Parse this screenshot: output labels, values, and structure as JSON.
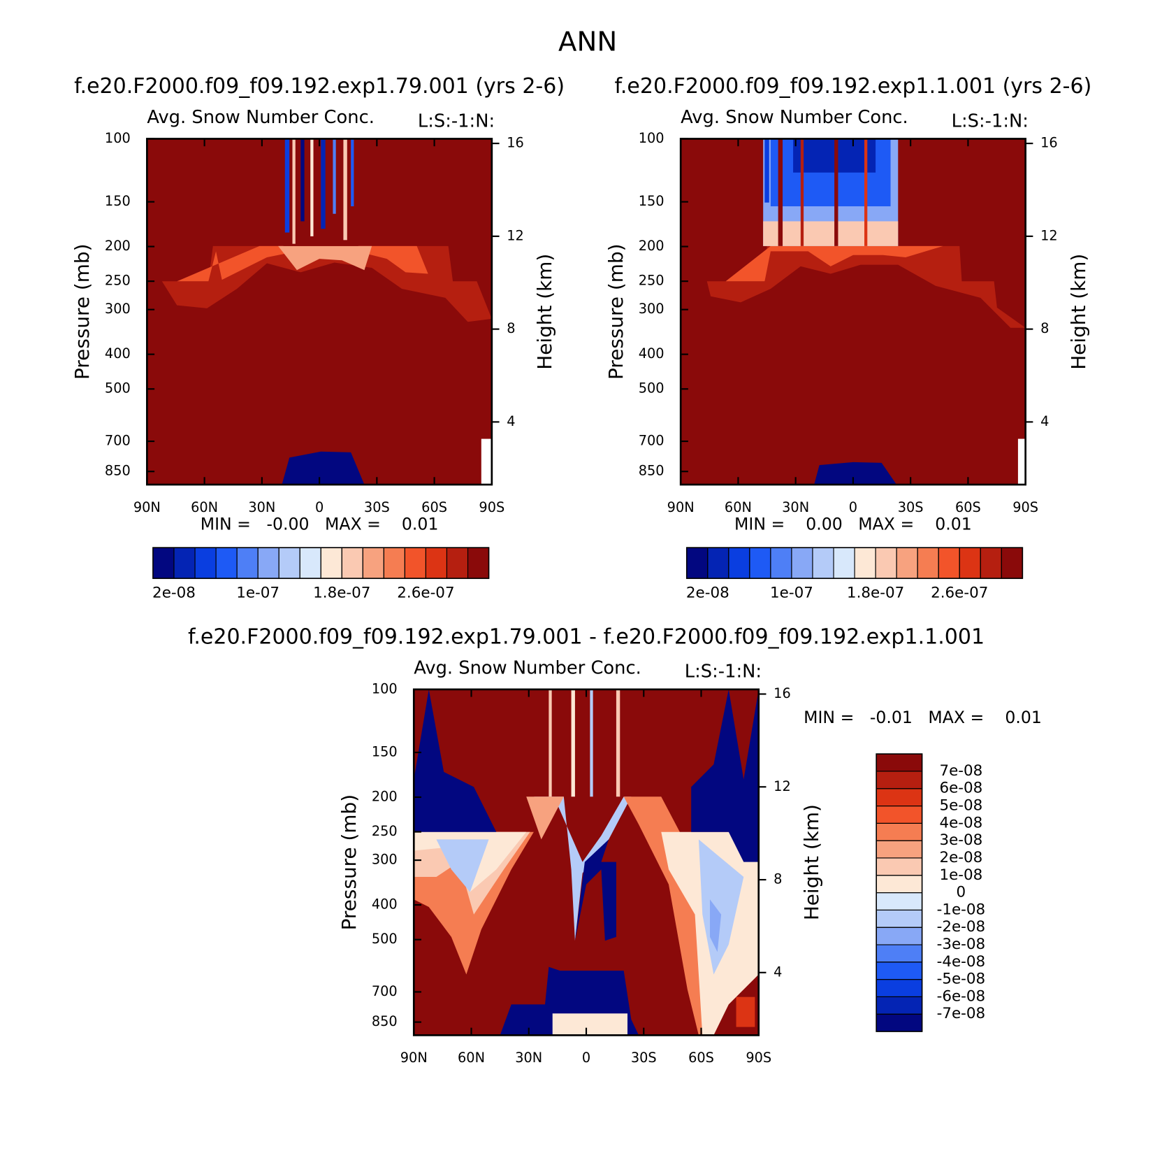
{
  "title": "ANN",
  "chart_data": [
    {
      "type": "contour",
      "title": "f.e20.F2000.f09_f09.192.exp1.79.001 (yrs 2-6)",
      "subtitle": "Avg. Snow Number Conc.",
      "annotation": "L:S:-1:N:",
      "ylabel": "Pressure (mb)",
      "y2label": "Height (km)",
      "xlim": [
        90,
        -90
      ],
      "xticks": [
        {
          "value": 90,
          "label": "90N"
        },
        {
          "value": 60,
          "label": "60N"
        },
        {
          "value": 30,
          "label": "30N"
        },
        0,
        {
          "value": -30,
          "label": "30S"
        },
        {
          "value": -60,
          "label": "60S"
        },
        {
          "value": -90,
          "label": "90S"
        }
      ],
      "ylim": [
        100,
        925
      ],
      "yscale": "log",
      "yticks": [
        100,
        150,
        200,
        250,
        300,
        400,
        500,
        700,
        850
      ],
      "y2lim": [
        1.3,
        16.2
      ],
      "y2ticks": [
        4,
        8,
        12,
        16
      ],
      "stats": "MIN =   -0.00   MAX =    0.01",
      "colorbar": {
        "orientation": "horizontal",
        "colors": [
          "#020780",
          "#0424b4",
          "#0a3ee0",
          "#1e5af5",
          "#4e7ff6",
          "#88a8f6",
          "#b4cbf8",
          "#d8e8fb",
          "#fde8d6",
          "#fac9b2",
          "#f7a27f",
          "#f57d52",
          "#f2542a",
          "#dc3414",
          "#b51f10",
          "#8a0a0a"
        ],
        "levels": [
          2e-08,
          4e-08,
          6e-08,
          8e-08,
          1e-07,
          1.2e-07,
          1.4e-07,
          1.6e-07,
          1.8e-07,
          2e-07,
          2.2e-07,
          2.4e-07,
          2.6e-07,
          2.8e-07,
          3e-07
        ],
        "ticks": [
          {
            "value": 2e-08,
            "label": "2e-08"
          },
          {
            "value": 1e-07,
            "label": "1e-07"
          },
          {
            "value": 1.8e-07,
            "label": "1.8e-07"
          },
          {
            "value": 2.6e-07,
            "label": "2.6e-07"
          }
        ]
      }
    },
    {
      "type": "contour",
      "title": "f.e20.F2000.f09_f09.192.exp1.1.001 (yrs 2-6)",
      "subtitle": "Avg. Snow Number Conc.",
      "annotation": "L:S:-1:N:",
      "ylabel": "Pressure (mb)",
      "y2label": "Height (km)",
      "xlim": [
        90,
        -90
      ],
      "xticks": [
        {
          "value": 90,
          "label": "90N"
        },
        {
          "value": 60,
          "label": "60N"
        },
        {
          "value": 30,
          "label": "30N"
        },
        0,
        {
          "value": -30,
          "label": "30S"
        },
        {
          "value": -60,
          "label": "60S"
        },
        {
          "value": -90,
          "label": "90S"
        }
      ],
      "ylim": [
        100,
        925
      ],
      "yscale": "log",
      "yticks": [
        100,
        150,
        200,
        250,
        300,
        400,
        500,
        700,
        850
      ],
      "y2lim": [
        1.3,
        16.2
      ],
      "y2ticks": [
        4,
        8,
        12,
        16
      ],
      "stats": "MIN =    0.00   MAX =    0.01",
      "colorbar": {
        "orientation": "horizontal",
        "colors": [
          "#020780",
          "#0424b4",
          "#0a3ee0",
          "#1e5af5",
          "#4e7ff6",
          "#88a8f6",
          "#b4cbf8",
          "#d8e8fb",
          "#fde8d6",
          "#fac9b2",
          "#f7a27f",
          "#f57d52",
          "#f2542a",
          "#dc3414",
          "#b51f10",
          "#8a0a0a"
        ],
        "levels": [
          2e-08,
          4e-08,
          6e-08,
          8e-08,
          1e-07,
          1.2e-07,
          1.4e-07,
          1.6e-07,
          1.8e-07,
          2e-07,
          2.2e-07,
          2.4e-07,
          2.6e-07,
          2.8e-07,
          3e-07
        ],
        "ticks": [
          {
            "value": 2e-08,
            "label": "2e-08"
          },
          {
            "value": 1e-07,
            "label": "1e-07"
          },
          {
            "value": 1.8e-07,
            "label": "1.8e-07"
          },
          {
            "value": 2.6e-07,
            "label": "2.6e-07"
          }
        ]
      }
    },
    {
      "type": "contour",
      "title": "f.e20.F2000.f09_f09.192.exp1.79.001 - f.e20.F2000.f09_f09.192.exp1.1.001",
      "subtitle": "Avg. Snow Number Conc.",
      "annotation": "L:S:-1:N:",
      "ylabel": "Pressure (mb)",
      "y2label": "Height (km)",
      "xlim": [
        90,
        -90
      ],
      "xticks": [
        {
          "value": 90,
          "label": "90N"
        },
        {
          "value": 60,
          "label": "60N"
        },
        {
          "value": 30,
          "label": "30N"
        },
        0,
        {
          "value": -30,
          "label": "30S"
        },
        {
          "value": -60,
          "label": "60S"
        },
        {
          "value": -90,
          "label": "90S"
        }
      ],
      "ylim": [
        100,
        925
      ],
      "yscale": "log",
      "yticks": [
        100,
        150,
        200,
        250,
        300,
        400,
        500,
        700,
        850
      ],
      "y2lim": [
        1.3,
        16.2
      ],
      "y2ticks": [
        4,
        8,
        12,
        16
      ],
      "stats": "MIN =   -0.01   MAX =    0.01",
      "colorbar": {
        "orientation": "vertical",
        "colors": [
          "#020780",
          "#0424b4",
          "#0a3ee0",
          "#1e5af5",
          "#4e7ff6",
          "#88a8f6",
          "#b4cbf8",
          "#d8e8fb",
          "#fde8d6",
          "#fac9b2",
          "#f7a27f",
          "#f57d52",
          "#f2542a",
          "#dc3414",
          "#b51f10",
          "#8a0a0a"
        ],
        "levels": [
          -7e-08,
          -6e-08,
          -5e-08,
          -4e-08,
          -3e-08,
          -2e-08,
          -1e-08,
          0,
          1e-08,
          2e-08,
          3e-08,
          4e-08,
          5e-08,
          6e-08,
          7e-08
        ],
        "ticks": [
          {
            "value": -7e-08,
            "label": "-7e-08"
          },
          {
            "value": -6e-08,
            "label": "-6e-08"
          },
          {
            "value": -5e-08,
            "label": "-5e-08"
          },
          {
            "value": -4e-08,
            "label": "-4e-08"
          },
          {
            "value": -3e-08,
            "label": "-3e-08"
          },
          {
            "value": -2e-08,
            "label": "-2e-08"
          },
          {
            "value": -1e-08,
            "label": "-1e-08"
          },
          0,
          {
            "value": 1e-08,
            "label": "1e-08"
          },
          {
            "value": 2e-08,
            "label": "2e-08"
          },
          {
            "value": 3e-08,
            "label": "3e-08"
          },
          {
            "value": 4e-08,
            "label": "4e-08"
          },
          {
            "value": 5e-08,
            "label": "5e-08"
          },
          {
            "value": 6e-08,
            "label": "6e-08"
          },
          {
            "value": 7e-08,
            "label": "7e-08"
          }
        ]
      }
    }
  ]
}
